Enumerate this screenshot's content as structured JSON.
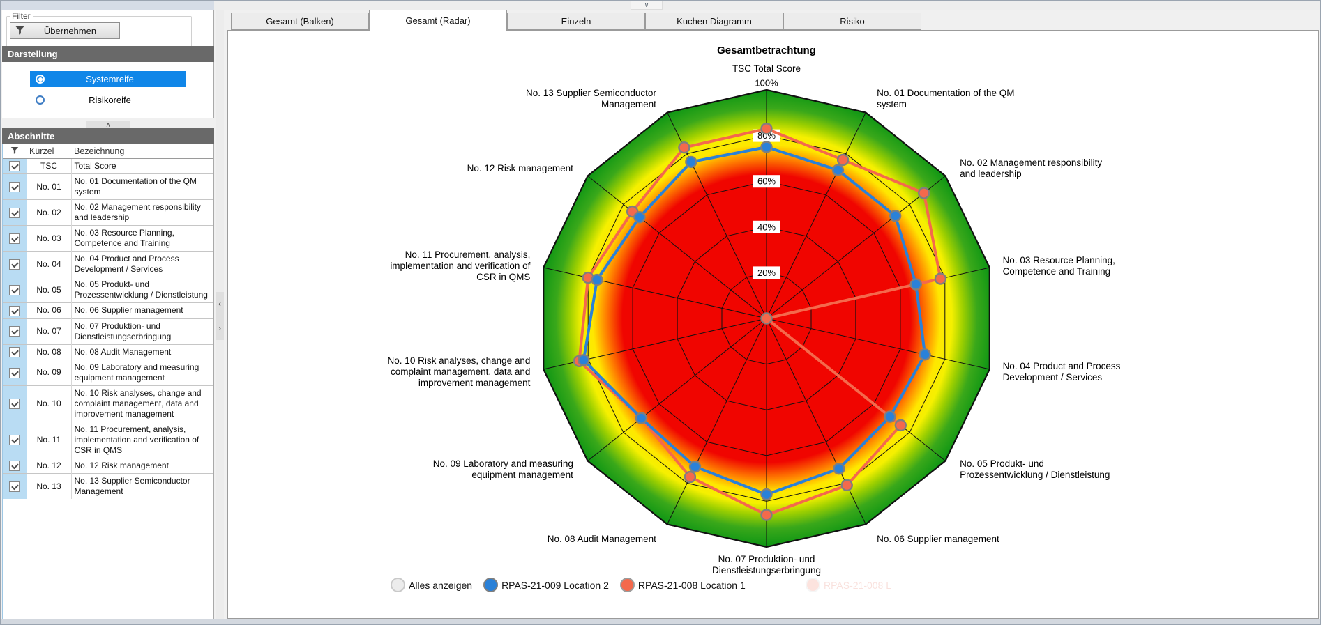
{
  "window": {
    "collapse_button_icon": "chevron-down"
  },
  "icons": {
    "chevron_down": "∨",
    "chevron_up": "∧",
    "chevron_left": "‹",
    "chevron_right": "›"
  },
  "sidebar": {
    "filter_group_label": "Filter",
    "apply_button": "Übernehmen",
    "darstellung": {
      "header": "Darstellung",
      "options": [
        {
          "label": "Systemreife",
          "selected": true
        },
        {
          "label": "Risikoreife",
          "selected": false
        }
      ]
    },
    "abschnitte": {
      "header": "Abschnitte",
      "columns": [
        "Kürzel",
        "Bezeichnung"
      ],
      "rows": [
        {
          "checked": true,
          "kuerzel": "TSC",
          "bezeichnung": "Total Score"
        },
        {
          "checked": true,
          "kuerzel": "No. 01",
          "bezeichnung": "No. 01 Documentation of the QM system"
        },
        {
          "checked": true,
          "kuerzel": "No. 02",
          "bezeichnung": "No. 02 Management responsibility and leadership"
        },
        {
          "checked": true,
          "kuerzel": "No. 03",
          "bezeichnung": "No. 03 Resource Planning, Competence and Training"
        },
        {
          "checked": true,
          "kuerzel": "No. 04",
          "bezeichnung": "No. 04 Product and Process Development / Services"
        },
        {
          "checked": true,
          "kuerzel": "No. 05",
          "bezeichnung": "No. 05 Produkt- und Prozessentwicklung / Dienstleistung"
        },
        {
          "checked": true,
          "kuerzel": "No. 06",
          "bezeichnung": "No. 06 Supplier management"
        },
        {
          "checked": true,
          "kuerzel": "No. 07",
          "bezeichnung": "No. 07 Produktion- und Dienstleistungserbringung"
        },
        {
          "checked": true,
          "kuerzel": "No. 08",
          "bezeichnung": "No. 08 Audit Management"
        },
        {
          "checked": true,
          "kuerzel": "No. 09",
          "bezeichnung": "No. 09 Laboratory and measuring equipment management"
        },
        {
          "checked": true,
          "kuerzel": "No. 10",
          "bezeichnung": "No. 10 Risk analyses, change and complaint management, data and improvement management"
        },
        {
          "checked": true,
          "kuerzel": "No. 11",
          "bezeichnung": "No. 11 Procurement, analysis, implementation and verification of CSR in QMS"
        },
        {
          "checked": true,
          "kuerzel": "No. 12",
          "bezeichnung": "No. 12 Risk management"
        },
        {
          "checked": true,
          "kuerzel": "No. 13",
          "bezeichnung": "No. 13 Supplier Semiconductor Management"
        }
      ]
    }
  },
  "tabs": {
    "items": [
      "Gesamt (Balken)",
      "Gesamt (Radar)",
      "Einzeln",
      "Kuchen Diagramm",
      "Risiko"
    ],
    "active": "Gesamt (Radar)"
  },
  "chart_data": {
    "type": "radar",
    "title": "Gesamtbetrachtung",
    "max_pct": 100,
    "ring_step_pct": 20,
    "ring_labels": [
      "20%",
      "40%",
      "60%",
      "80%",
      "100%"
    ],
    "axes": [
      {
        "label": "TSC Total Score",
        "lines": [
          "TSC Total Score"
        ]
      },
      {
        "label": "No. 01 Documentation of the QM system",
        "lines": [
          "No. 01 Documentation of the QM",
          "system"
        ]
      },
      {
        "label": "No. 02 Management responsibility and leadership",
        "lines": [
          "No. 02 Management responsibility",
          "and leadership"
        ]
      },
      {
        "label": "No. 03 Resource Planning, Competence and Training",
        "lines": [
          "No. 03 Resource Planning,",
          "Competence and Training"
        ]
      },
      {
        "label": "No. 04 Product and Process Development / Services",
        "lines": [
          "No. 04 Product and Process",
          "Development / Services"
        ]
      },
      {
        "label": "No. 05 Produkt- und Prozessentwicklung / Dienstleistung",
        "lines": [
          "No. 05 Produkt- und",
          "Prozessentwicklung / Dienstleistung"
        ]
      },
      {
        "label": "No. 06 Supplier management",
        "lines": [
          "No. 06 Supplier management"
        ]
      },
      {
        "label": "No. 07 Produktion- und Dienstleistungserbringung",
        "lines": [
          "No. 07 Produktion- und",
          "Dienstleistungserbringung"
        ]
      },
      {
        "label": "No. 08 Audit Management",
        "lines": [
          "No. 08 Audit Management"
        ]
      },
      {
        "label": "No. 09 Laboratory and measuring equipment management",
        "lines": [
          "No. 09 Laboratory and measuring",
          "equipment management"
        ]
      },
      {
        "label": "No. 10 Risk analyses, change and complaint management, data and improvement management",
        "lines": [
          "No. 10 Risk analyses, change and",
          "complaint management, data and",
          "improvement management"
        ]
      },
      {
        "label": "No. 11 Procurement, analysis, implementation and verification of CSR in QMS",
        "lines": [
          "No. 11 Procurement, analysis,",
          "implementation and verification of",
          "CSR in QMS"
        ]
      },
      {
        "label": "No. 12 Risk management",
        "lines": [
          "No. 12 Risk management"
        ]
      },
      {
        "label": "No. 13 Supplier Semiconductor Management",
        "lines": [
          "No. 13 Supplier Semiconductor",
          "Management"
        ]
      }
    ],
    "series": [
      {
        "name": "RPAS-21-008 Location 1",
        "color": "#f4694c",
        "values_pct": [
          83,
          77,
          88,
          78,
          0,
          75,
          81,
          86,
          77,
          70,
          84,
          80,
          75,
          83
        ]
      },
      {
        "name": "RPAS-21-009 Location 2",
        "color": "#2a81d8",
        "values_pct": [
          75,
          72,
          72,
          67,
          71,
          69,
          73,
          77,
          72,
          70,
          82,
          76,
          71,
          76
        ]
      }
    ],
    "zone_gradient": [
      [
        0.0,
        "#f00500"
      ],
      [
        0.63,
        "#f00500"
      ],
      [
        0.7,
        "#ff7d00"
      ],
      [
        0.76,
        "#ffe700"
      ],
      [
        0.81,
        "#f5f000"
      ],
      [
        0.86,
        "#9ccf00"
      ],
      [
        0.92,
        "#3aa81a"
      ],
      [
        1.0,
        "#0c9514"
      ]
    ],
    "grid_color": "#111111",
    "marker_border_color": "#7f7f7f"
  },
  "legend": {
    "items": [
      {
        "label": "Alles anzeigen",
        "color": "#ececec",
        "border": "#c9c9c9"
      },
      {
        "label": "RPAS-21-009 Location 2",
        "color": "#2a81d8",
        "border": "#7f7f7f"
      },
      {
        "label": "RPAS-21-008  Location 1",
        "color": "#f4694c",
        "border": "#9c9c9c"
      }
    ],
    "ghost_item": {
      "label": "RPAS-21-008 L",
      "color": "#f4694c"
    }
  }
}
